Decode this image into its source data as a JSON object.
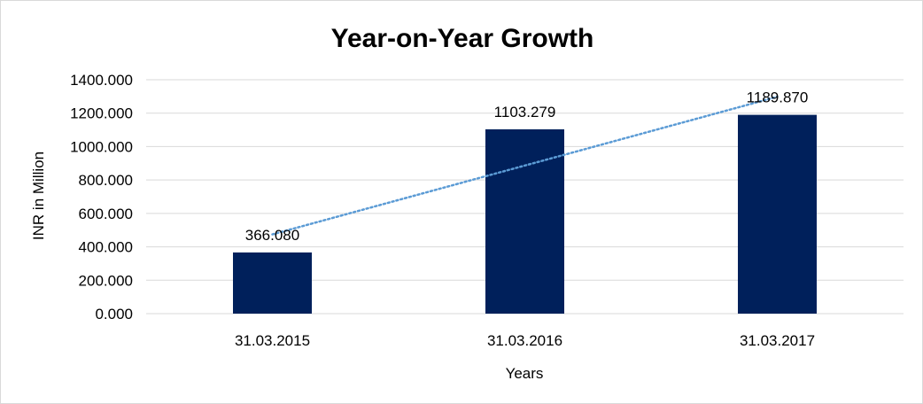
{
  "chart_data": {
    "type": "bar",
    "title": "Year-on-Year Growth",
    "xlabel": "Years",
    "ylabel": "INR in Million",
    "categories": [
      "31.03.2015",
      "31.03.2016",
      "31.03.2017"
    ],
    "values": [
      366.08,
      1103.279,
      1189.87
    ],
    "data_labels": [
      "366.080",
      "1103.279",
      "1189.870"
    ],
    "ylim": [
      0,
      1400
    ],
    "y_ticks": [
      "0.000",
      "200.000",
      "400.000",
      "600.000",
      "800.000",
      "1000.000",
      "1200.000",
      "1400.000"
    ],
    "grid": true,
    "legend": "none",
    "trendline": {
      "type": "linear",
      "style": "dotted"
    },
    "colors": {
      "bar": "#00205b",
      "trendline": "#5b9bd5",
      "grid": "#d9d9d9"
    }
  }
}
